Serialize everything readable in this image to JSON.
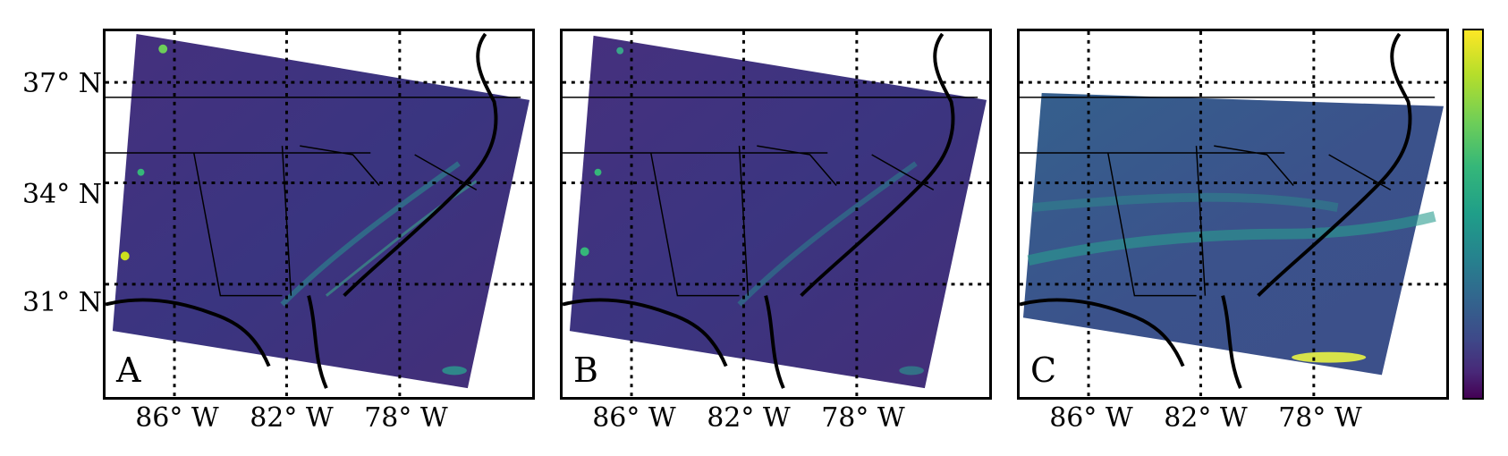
{
  "figure": {
    "panels": [
      {
        "letter": "A",
        "domain": "full"
      },
      {
        "letter": "B",
        "domain": "full"
      },
      {
        "letter": "C",
        "domain": "reduced"
      }
    ],
    "lat_labels": [
      "37° N",
      "34° N",
      "31° N"
    ],
    "lon_labels": [
      "86° W",
      "82° W",
      "78° W"
    ],
    "colormap": "viridis",
    "colors": {
      "field_dark": "#3b2f7a",
      "field_mid": "#2f5f8a",
      "accent_green": "#34b67a",
      "accent_yellow": "#d8e34a",
      "colorbar_top": "#fde725",
      "colorbar_bottom": "#440154"
    }
  }
}
